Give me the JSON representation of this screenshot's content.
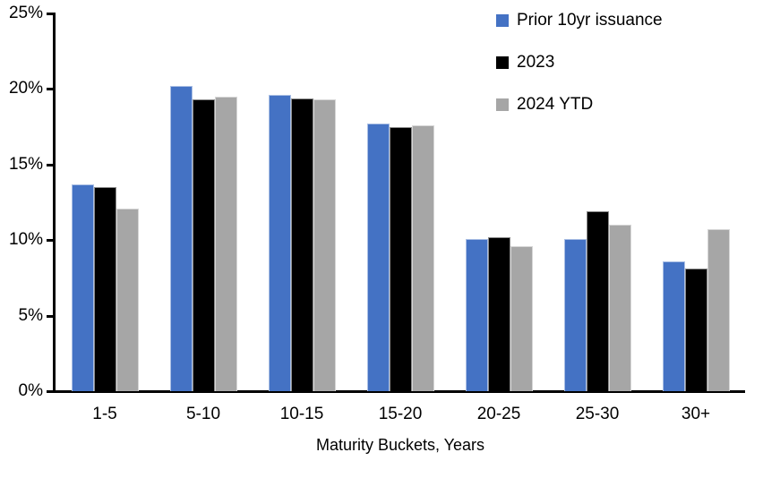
{
  "chart_data": {
    "type": "bar",
    "title": "",
    "categories": [
      "1-5",
      "5-10",
      "10-15",
      "15-20",
      "20-25",
      "25-30",
      "30+"
    ],
    "series": [
      {
        "name": "Prior 10yr issuance",
        "color": "#4472C4",
        "values": [
          13.7,
          20.2,
          19.6,
          17.7,
          10.1,
          10.1,
          8.6
        ]
      },
      {
        "name": "2023",
        "color": "#000000",
        "values": [
          13.5,
          19.3,
          19.4,
          17.5,
          10.2,
          11.9,
          8.1
        ]
      },
      {
        "name": "2024 YTD",
        "color": "#A6A6A6",
        "values": [
          12.1,
          19.5,
          19.3,
          17.6,
          9.6,
          11.0,
          10.7
        ]
      }
    ],
    "xlabel": "Maturity Buckets, Years",
    "ylabel": "",
    "ylim": [
      0,
      25
    ],
    "ytick_labels": [
      "0%",
      "5%",
      "10%",
      "15%",
      "20%",
      "25%"
    ],
    "grid": false,
    "legend_position": "top-right",
    "axis_color": "#000000",
    "background_color": "#FFFFFF"
  }
}
